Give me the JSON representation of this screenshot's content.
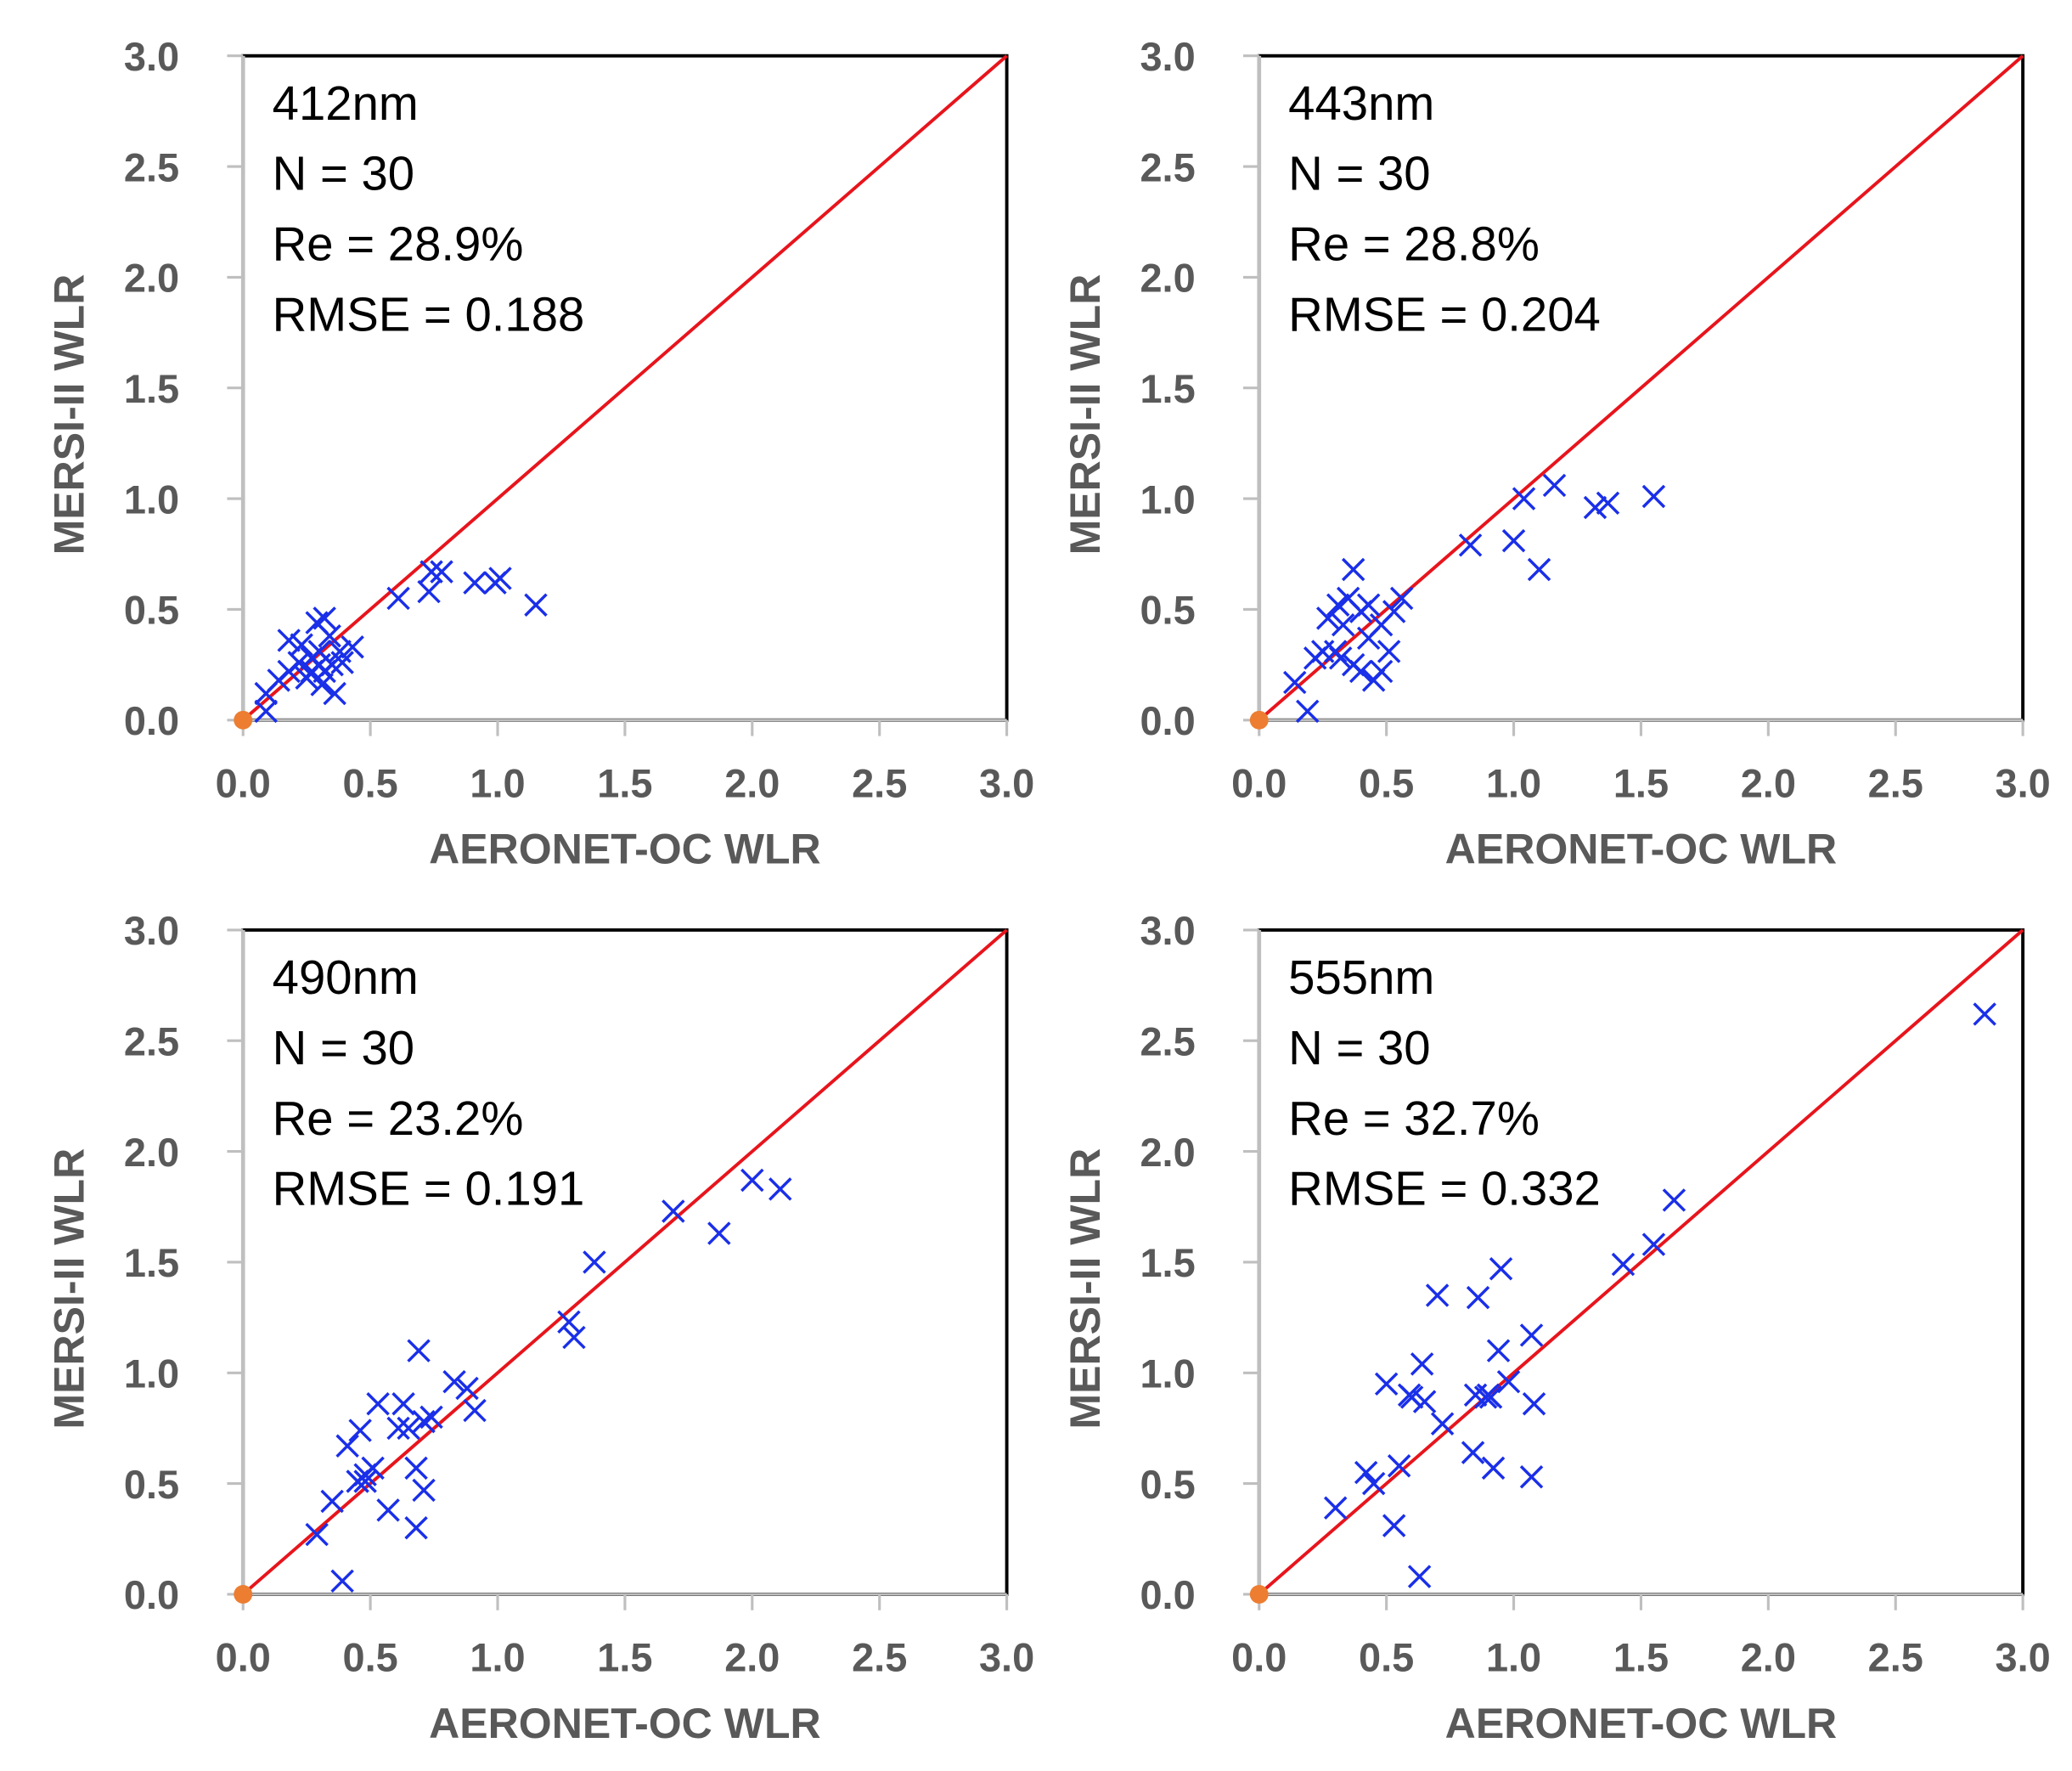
{
  "chart_data": [
    {
      "type": "scatter",
      "title": "412nm",
      "stats": [
        "412nm",
        "N = 30",
        "Re = 28.9%",
        "RMSE = 0.188"
      ],
      "xlabel": "AERONET-OC WLR",
      "ylabel": "MERSI-II WLR",
      "xlim": [
        0,
        3
      ],
      "ylim": [
        0,
        3
      ],
      "ticks": [
        "0.0",
        "0.5",
        "1.0",
        "1.5",
        "2.0",
        "2.5",
        "3.0"
      ],
      "points": [
        [
          0.09,
          0.04
        ],
        [
          0.09,
          0.12
        ],
        [
          0.14,
          0.18
        ],
        [
          0.18,
          0.22
        ],
        [
          0.18,
          0.36
        ],
        [
          0.25,
          0.19
        ],
        [
          0.27,
          0.28
        ],
        [
          0.29,
          0.44
        ],
        [
          0.32,
          0.46
        ],
        [
          0.3,
          0.31
        ],
        [
          0.34,
          0.38
        ],
        [
          0.31,
          0.16
        ],
        [
          0.36,
          0.12
        ],
        [
          0.35,
          0.25
        ],
        [
          0.38,
          0.31
        ],
        [
          0.43,
          0.33
        ],
        [
          0.23,
          0.34
        ],
        [
          0.27,
          0.22
        ],
        [
          0.61,
          0.55
        ],
        [
          0.73,
          0.58
        ],
        [
          0.74,
          0.67
        ],
        [
          0.78,
          0.67
        ],
        [
          0.91,
          0.62
        ],
        [
          0.99,
          0.62
        ],
        [
          1.01,
          0.64
        ],
        [
          1.15,
          0.52
        ],
        [
          0.32,
          0.22
        ],
        [
          0.22,
          0.26
        ],
        [
          0.3,
          0.25
        ],
        [
          0.39,
          0.26
        ]
      ]
    },
    {
      "type": "scatter",
      "title": "443nm",
      "stats": [
        "443nm",
        "N = 30",
        "Re = 28.8%",
        "RMSE = 0.204"
      ],
      "xlabel": "AERONET-OC WLR",
      "ylabel": "MERSI-II WLR",
      "xlim": [
        0,
        3
      ],
      "ylim": [
        0,
        3
      ],
      "ticks": [
        "0.0",
        "0.5",
        "1.0",
        "1.5",
        "2.0",
        "2.5",
        "3.0"
      ],
      "points": [
        [
          0.19,
          0.04
        ],
        [
          0.14,
          0.17
        ],
        [
          0.22,
          0.28
        ],
        [
          0.25,
          0.31
        ],
        [
          0.27,
          0.46
        ],
        [
          0.31,
          0.52
        ],
        [
          0.37,
          0.68
        ],
        [
          0.35,
          0.55
        ],
        [
          0.4,
          0.49
        ],
        [
          0.43,
          0.52
        ],
        [
          0.32,
          0.28
        ],
        [
          0.37,
          0.25
        ],
        [
          0.4,
          0.22
        ],
        [
          0.45,
          0.18
        ],
        [
          0.48,
          0.43
        ],
        [
          0.51,
          0.31
        ],
        [
          0.53,
          0.49
        ],
        [
          0.56,
          0.55
        ],
        [
          0.43,
          0.37
        ],
        [
          0.3,
          0.31
        ],
        [
          0.83,
          0.79
        ],
        [
          1.0,
          0.81
        ],
        [
          1.04,
          1.0
        ],
        [
          1.16,
          1.06
        ],
        [
          1.1,
          0.68
        ],
        [
          1.32,
          0.96
        ],
        [
          1.37,
          0.98
        ],
        [
          1.55,
          1.01
        ],
        [
          0.48,
          0.22
        ],
        [
          0.33,
          0.43
        ]
      ]
    },
    {
      "type": "scatter",
      "title": "490nm",
      "stats": [
        "490nm",
        "N = 30",
        "Re = 23.2%",
        "RMSE = 0.191"
      ],
      "xlabel": "AERONET-OC WLR",
      "ylabel": "MERSI-II WLR",
      "xlim": [
        0,
        3
      ],
      "ylim": [
        0,
        3
      ],
      "ticks": [
        "0.0",
        "0.5",
        "1.0",
        "1.5",
        "2.0",
        "2.5",
        "3.0"
      ],
      "points": [
        [
          0.29,
          0.27
        ],
        [
          0.35,
          0.42
        ],
        [
          0.39,
          0.06
        ],
        [
          0.41,
          0.67
        ],
        [
          0.46,
          0.74
        ],
        [
          0.45,
          0.51
        ],
        [
          0.48,
          0.54
        ],
        [
          0.51,
          0.57
        ],
        [
          0.53,
          0.86
        ],
        [
          0.57,
          0.38
        ],
        [
          0.63,
          0.86
        ],
        [
          0.61,
          0.75
        ],
        [
          0.68,
          0.57
        ],
        [
          0.69,
          1.1
        ],
        [
          0.68,
          0.3
        ],
        [
          0.71,
          0.47
        ],
        [
          0.71,
          0.78
        ],
        [
          0.74,
          0.8
        ],
        [
          0.83,
          0.96
        ],
        [
          0.88,
          0.93
        ],
        [
          0.91,
          0.83
        ],
        [
          1.28,
          1.23
        ],
        [
          1.3,
          1.16
        ],
        [
          1.38,
          1.5
        ],
        [
          1.69,
          1.73
        ],
        [
          1.87,
          1.63
        ],
        [
          2.0,
          1.87
        ],
        [
          2.11,
          1.83
        ],
        [
          0.48,
          0.51
        ],
        [
          0.65,
          0.75
        ]
      ]
    },
    {
      "type": "scatter",
      "title": "555nm",
      "stats": [
        "555nm",
        "N = 30",
        "Re = 32.7%",
        "RMSE = 0.332"
      ],
      "xlabel": "AERONET-OC WLR",
      "ylabel": "MERSI-II WLR",
      "xlim": [
        0,
        3
      ],
      "ylim": [
        0,
        3
      ],
      "ticks": [
        "0.0",
        "0.5",
        "1.0",
        "1.5",
        "2.0",
        "2.5",
        "3.0"
      ],
      "points": [
        [
          0.3,
          0.39
        ],
        [
          0.42,
          0.55
        ],
        [
          0.45,
          0.5
        ],
        [
          0.5,
          0.95
        ],
        [
          0.53,
          0.31
        ],
        [
          0.55,
          0.58
        ],
        [
          0.6,
          0.89
        ],
        [
          0.63,
          0.08
        ],
        [
          0.64,
          1.04
        ],
        [
          0.65,
          0.87
        ],
        [
          0.72,
          0.77
        ],
        [
          0.7,
          1.35
        ],
        [
          0.84,
          0.64
        ],
        [
          0.85,
          0.9
        ],
        [
          0.86,
          1.34
        ],
        [
          0.89,
          0.89
        ],
        [
          0.91,
          0.89
        ],
        [
          0.92,
          0.57
        ],
        [
          0.94,
          1.1
        ],
        [
          0.95,
          1.47
        ],
        [
          0.98,
          0.96
        ],
        [
          1.07,
          1.17
        ],
        [
          1.08,
          0.86
        ],
        [
          1.07,
          0.53
        ],
        [
          1.43,
          1.49
        ],
        [
          1.55,
          1.58
        ],
        [
          1.63,
          1.78
        ],
        [
          2.85,
          2.62
        ],
        [
          0.59,
          0.9
        ],
        [
          0.9,
          0.9
        ]
      ]
    }
  ],
  "colors": {
    "points": "#1a2fe8",
    "line": "#e8141c",
    "origin": "#ed7d31",
    "axis": "#bfbfbf",
    "text": "#595959"
  }
}
